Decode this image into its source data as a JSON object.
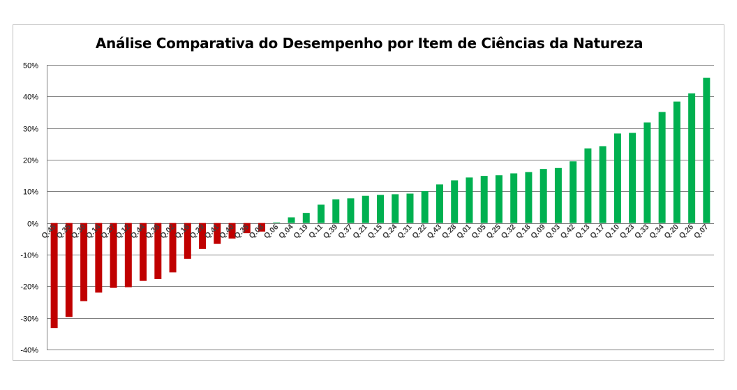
{
  "chart_data": {
    "type": "bar",
    "title": "Análise Comparativa do Desempenho por Item de Ciências da Natureza",
    "xlabel": "",
    "ylabel": "",
    "ylim": [
      -0.4,
      0.5
    ],
    "y_ticks": [
      -0.4,
      -0.3,
      -0.2,
      -0.1,
      0,
      0.1,
      0.2,
      0.3,
      0.4,
      0.5
    ],
    "y_tick_labels": [
      "-40%",
      "-30%",
      "-20%",
      "-10%",
      "0%",
      "10%",
      "20%",
      "30%",
      "40%",
      "50%"
    ],
    "grid": true,
    "categories": [
      "Q.45",
      "Q.35",
      "Q.30",
      "Q.14",
      "Q.27",
      "Q.12",
      "Q.44",
      "Q.38",
      "Q.02",
      "Q.16",
      "Q.29",
      "Q.41",
      "Q.40",
      "Q.35",
      "Q.08",
      "Q.06",
      "Q.04",
      "Q.19",
      "Q.11",
      "Q.39",
      "Q.37",
      "Q.21",
      "Q.15",
      "Q.24",
      "Q.31",
      "Q.22",
      "Q.43",
      "Q.28",
      "Q.01",
      "Q.05",
      "Q.25",
      "Q.32",
      "Q.18",
      "Q.09",
      "Q.03",
      "Q.42",
      "Q.13",
      "Q.17",
      "Q.10",
      "Q.23",
      "Q.33",
      "Q.34",
      "Q.20",
      "Q.26",
      "Q.07"
    ],
    "values": [
      -0.332,
      -0.297,
      -0.247,
      -0.22,
      -0.205,
      -0.203,
      -0.183,
      -0.177,
      -0.156,
      -0.113,
      -0.082,
      -0.066,
      -0.049,
      -0.032,
      -0.027,
      0.002,
      0.018,
      0.032,
      0.058,
      0.075,
      0.078,
      0.086,
      0.089,
      0.091,
      0.093,
      0.101,
      0.122,
      0.135,
      0.144,
      0.149,
      0.151,
      0.157,
      0.161,
      0.171,
      0.174,
      0.195,
      0.236,
      0.243,
      0.283,
      0.285,
      0.318,
      0.351,
      0.384,
      0.41,
      0.459
    ],
    "colors": {
      "negative": "#c00000",
      "positive": "#00b050",
      "grid": "#808080"
    }
  }
}
